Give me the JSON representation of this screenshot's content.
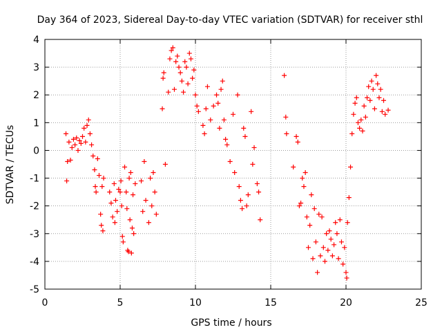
{
  "chart_data": {
    "type": "scatter",
    "title": "Day 364 of 2023, Sidereal Day-to-day VTEC variation (SDTVAR) for receiver sthl",
    "xlabel": "GPS time / hours",
    "ylabel": "SDTVAR / TECUs",
    "xlim": [
      0,
      25
    ],
    "ylim": [
      -5,
      4
    ],
    "xticks": [
      0,
      5,
      10,
      15,
      20,
      25
    ],
    "yticks": [
      -5,
      -4,
      -3,
      -2,
      -1,
      0,
      1,
      2,
      3,
      4
    ],
    "grid": true,
    "marker": "+",
    "color": "#ff0000",
    "series": [
      {
        "name": "SDTVAR",
        "points": [
          [
            1.4,
            0.6
          ],
          [
            1.45,
            -1.1
          ],
          [
            1.5,
            -0.4
          ],
          [
            1.6,
            0.3
          ],
          [
            1.7,
            -0.35
          ],
          [
            1.8,
            0.1
          ],
          [
            1.9,
            0.4
          ],
          [
            2.0,
            0.2
          ],
          [
            2.1,
            0.45
          ],
          [
            2.2,
            0.0
          ],
          [
            2.3,
            0.35
          ],
          [
            2.4,
            0.25
          ],
          [
            2.5,
            0.5
          ],
          [
            2.6,
            0.8
          ],
          [
            2.7,
            0.3
          ],
          [
            2.8,
            0.9
          ],
          [
            2.9,
            1.1
          ],
          [
            3.0,
            0.6
          ],
          [
            3.1,
            0.2
          ],
          [
            3.2,
            -0.2
          ],
          [
            3.3,
            -0.7
          ],
          [
            3.35,
            -1.3
          ],
          [
            3.4,
            -1.5
          ],
          [
            3.5,
            -0.3
          ],
          [
            3.6,
            -0.9
          ],
          [
            3.7,
            -2.3
          ],
          [
            3.75,
            -2.7
          ],
          [
            3.8,
            -1.3
          ],
          [
            3.85,
            -2.9
          ],
          [
            3.9,
            -1.0
          ],
          [
            4.3,
            -1.5
          ],
          [
            4.4,
            -1.9
          ],
          [
            4.5,
            -2.4
          ],
          [
            4.6,
            -1.2
          ],
          [
            4.65,
            -2.6
          ],
          [
            4.7,
            -1.8
          ],
          [
            4.8,
            -2.2
          ],
          [
            4.9,
            -1.4
          ],
          [
            5.0,
            -1.5
          ],
          [
            5.05,
            -1.1
          ],
          [
            5.1,
            -2.0
          ],
          [
            5.15,
            -3.1
          ],
          [
            5.2,
            -3.3
          ],
          [
            5.3,
            -0.6
          ],
          [
            5.4,
            -1.5
          ],
          [
            5.45,
            -2.1
          ],
          [
            5.5,
            -3.6
          ],
          [
            5.55,
            -3.65
          ],
          [
            5.6,
            -1.0
          ],
          [
            5.65,
            -2.5
          ],
          [
            5.7,
            -0.8
          ],
          [
            5.75,
            -3.7
          ],
          [
            5.8,
            -2.8
          ],
          [
            5.85,
            -1.6
          ],
          [
            5.9,
            -3.0
          ],
          [
            6.0,
            -1.2
          ],
          [
            6.4,
            -1.1
          ],
          [
            6.5,
            -2.2
          ],
          [
            6.6,
            -0.4
          ],
          [
            6.7,
            -1.8
          ],
          [
            6.9,
            -2.6
          ],
          [
            7.0,
            -1.0
          ],
          [
            7.1,
            -2.0
          ],
          [
            7.2,
            -0.8
          ],
          [
            7.3,
            -1.5
          ],
          [
            7.4,
            -2.3
          ],
          [
            7.8,
            1.5
          ],
          [
            7.85,
            2.6
          ],
          [
            7.9,
            2.8
          ],
          [
            8.0,
            -0.5
          ],
          [
            8.2,
            2.1
          ],
          [
            8.3,
            3.3
          ],
          [
            8.4,
            3.6
          ],
          [
            8.5,
            3.7
          ],
          [
            8.6,
            2.2
          ],
          [
            8.7,
            3.2
          ],
          [
            8.8,
            3.4
          ],
          [
            8.9,
            3.0
          ],
          [
            9.0,
            2.8
          ],
          [
            9.1,
            2.5
          ],
          [
            9.2,
            2.1
          ],
          [
            9.3,
            3.2
          ],
          [
            9.4,
            3.0
          ],
          [
            9.5,
            2.4
          ],
          [
            9.6,
            3.5
          ],
          [
            9.7,
            3.3
          ],
          [
            9.8,
            2.6
          ],
          [
            9.9,
            2.9
          ],
          [
            10.0,
            2.0
          ],
          [
            10.1,
            1.6
          ],
          [
            10.2,
            1.4
          ],
          [
            10.5,
            0.9
          ],
          [
            10.6,
            0.6
          ],
          [
            10.7,
            1.5
          ],
          [
            10.8,
            2.3
          ],
          [
            11.0,
            1.1
          ],
          [
            11.2,
            1.6
          ],
          [
            11.4,
            2.0
          ],
          [
            11.5,
            1.7
          ],
          [
            11.6,
            0.8
          ],
          [
            11.7,
            2.2
          ],
          [
            11.8,
            2.5
          ],
          [
            11.9,
            1.1
          ],
          [
            12.0,
            0.4
          ],
          [
            12.1,
            0.2
          ],
          [
            12.3,
            -0.4
          ],
          [
            12.5,
            1.3
          ],
          [
            12.6,
            -0.8
          ],
          [
            12.8,
            2.0
          ],
          [
            12.9,
            -1.3
          ],
          [
            13.0,
            -1.8
          ],
          [
            13.1,
            -2.1
          ],
          [
            13.2,
            0.8
          ],
          [
            13.3,
            0.5
          ],
          [
            13.4,
            -2.0
          ],
          [
            13.5,
            -1.6
          ],
          [
            13.7,
            1.4
          ],
          [
            13.8,
            -0.5
          ],
          [
            13.9,
            0.1
          ],
          [
            14.1,
            -1.2
          ],
          [
            14.2,
            -1.5
          ],
          [
            14.3,
            -2.5
          ],
          [
            15.9,
            2.7
          ],
          [
            16.0,
            1.2
          ],
          [
            16.05,
            0.6
          ],
          [
            16.5,
            -0.6
          ],
          [
            16.7,
            0.5
          ],
          [
            16.8,
            0.3
          ],
          [
            16.9,
            -2.0
          ],
          [
            17.0,
            -1.9
          ],
          [
            17.1,
            -1.0
          ],
          [
            17.2,
            -1.3
          ],
          [
            17.3,
            -0.8
          ],
          [
            17.4,
            -2.4
          ],
          [
            17.5,
            -3.5
          ],
          [
            17.6,
            -2.7
          ],
          [
            17.7,
            -1.6
          ],
          [
            17.8,
            -3.9
          ],
          [
            17.9,
            -2.1
          ],
          [
            18.0,
            -3.3
          ],
          [
            18.1,
            -4.4
          ],
          [
            18.2,
            -2.3
          ],
          [
            18.3,
            -3.8
          ],
          [
            18.4,
            -2.4
          ],
          [
            18.5,
            -3.5
          ],
          [
            18.6,
            -4.0
          ],
          [
            18.7,
            -3.0
          ],
          [
            18.8,
            -3.6
          ],
          [
            18.9,
            -2.9
          ],
          [
            19.0,
            -3.2
          ],
          [
            19.1,
            -3.8
          ],
          [
            19.2,
            -3.4
          ],
          [
            19.3,
            -2.6
          ],
          [
            19.4,
            -3.0
          ],
          [
            19.5,
            -3.9
          ],
          [
            19.6,
            -2.5
          ],
          [
            19.7,
            -3.3
          ],
          [
            19.8,
            -4.1
          ],
          [
            19.9,
            -3.5
          ],
          [
            20.0,
            -4.4
          ],
          [
            20.05,
            -4.6
          ],
          [
            20.1,
            -2.6
          ],
          [
            20.2,
            -1.7
          ],
          [
            20.3,
            -0.6
          ],
          [
            20.4,
            0.6
          ],
          [
            20.5,
            1.3
          ],
          [
            20.6,
            1.7
          ],
          [
            20.7,
            1.9
          ],
          [
            20.8,
            1.0
          ],
          [
            20.9,
            0.8
          ],
          [
            21.0,
            1.1
          ],
          [
            21.1,
            0.7
          ],
          [
            21.2,
            1.6
          ],
          [
            21.3,
            1.2
          ],
          [
            21.4,
            1.9
          ],
          [
            21.5,
            2.3
          ],
          [
            21.6,
            1.8
          ],
          [
            21.7,
            2.5
          ],
          [
            21.8,
            2.2
          ],
          [
            21.9,
            1.5
          ],
          [
            22.0,
            2.7
          ],
          [
            22.1,
            2.4
          ],
          [
            22.2,
            1.9
          ],
          [
            22.3,
            2.2
          ],
          [
            22.4,
            1.4
          ],
          [
            22.5,
            1.8
          ],
          [
            22.6,
            1.3
          ],
          [
            22.8,
            1.45
          ]
        ]
      }
    ]
  }
}
